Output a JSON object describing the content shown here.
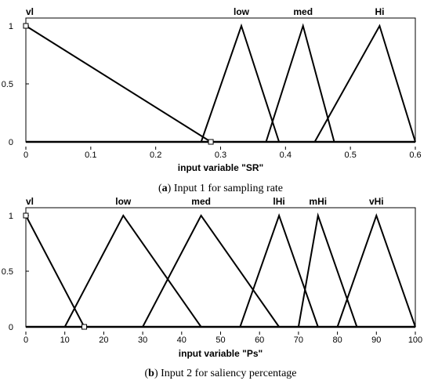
{
  "chart_data": [
    {
      "type": "line",
      "title": "",
      "xlabel": "input variable \"SR\"",
      "ylabel": "",
      "xlim": [
        0,
        0.6
      ],
      "ylim": [
        0,
        1
      ],
      "xticks": [
        "0",
        "0.1",
        "0.2",
        "0.3",
        "0.4",
        "0.5",
        "0.6"
      ],
      "yticks": [
        "0",
        "0.5",
        "1"
      ],
      "series": [
        {
          "name": "vl",
          "x": [
            0,
            0.285
          ],
          "y": [
            1,
            0
          ]
        },
        {
          "name": "low",
          "x": [
            0.27,
            0.332,
            0.39
          ],
          "y": [
            0,
            1,
            0
          ]
        },
        {
          "name": "med",
          "x": [
            0.37,
            0.427,
            0.475
          ],
          "y": [
            0,
            1,
            0
          ]
        },
        {
          "name": "Hi",
          "x": [
            0.445,
            0.545,
            0.6
          ],
          "y": [
            0,
            1,
            0
          ]
        }
      ],
      "caption_letter": "a",
      "caption": "Input 1 for sampling rate"
    },
    {
      "type": "line",
      "title": "",
      "xlabel": "input variable \"Ps\"",
      "ylabel": "",
      "xlim": [
        0,
        100
      ],
      "ylim": [
        0,
        1
      ],
      "xticks": [
        "0",
        "10",
        "20",
        "30",
        "40",
        "50",
        "60",
        "70",
        "80",
        "90",
        "100"
      ],
      "yticks": [
        "0",
        "0.5",
        "1"
      ],
      "series": [
        {
          "name": "vl",
          "x": [
            0,
            15
          ],
          "y": [
            1,
            0
          ]
        },
        {
          "name": "low",
          "x": [
            10,
            25,
            45
          ],
          "y": [
            0,
            1,
            0
          ]
        },
        {
          "name": "med",
          "x": [
            30,
            45,
            65
          ],
          "y": [
            0,
            1,
            0
          ]
        },
        {
          "name": "lHi",
          "x": [
            55,
            65,
            75
          ],
          "y": [
            0,
            1,
            0
          ]
        },
        {
          "name": "mHi",
          "x": [
            70,
            75,
            85
          ],
          "y": [
            0,
            1,
            0
          ]
        },
        {
          "name": "vHi",
          "x": [
            80,
            90,
            100
          ],
          "y": [
            0,
            1,
            0
          ]
        }
      ],
      "caption_letter": "b",
      "caption": "Input 2 for saliency percentage"
    }
  ]
}
